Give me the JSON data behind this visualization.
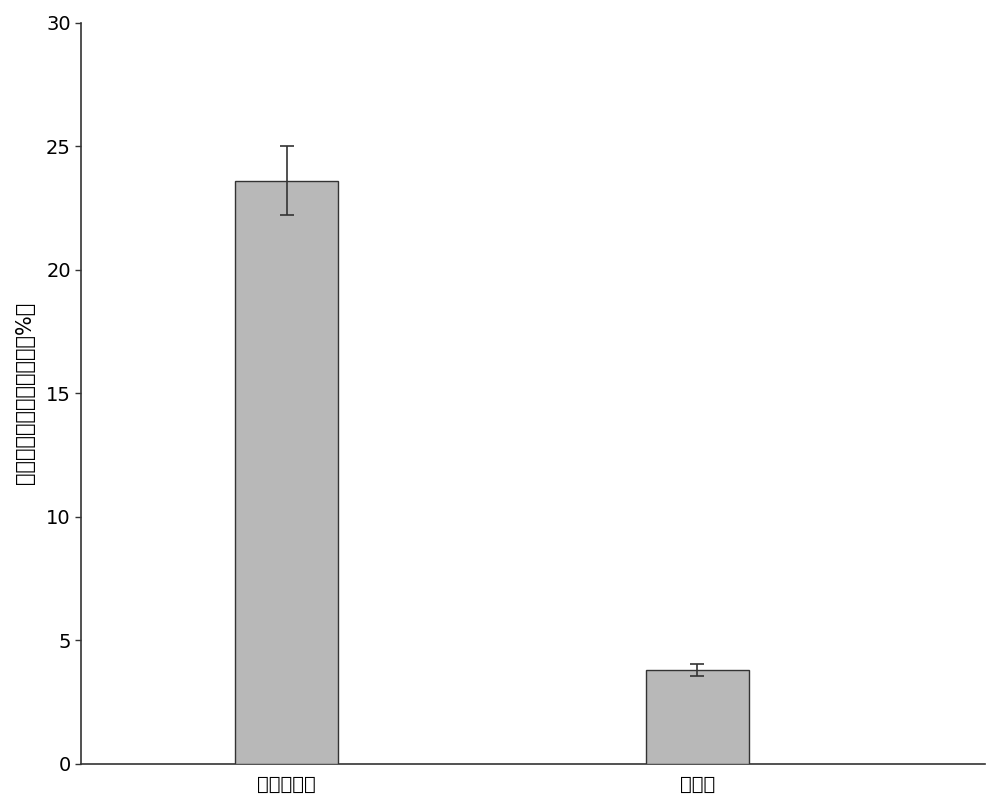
{
  "categories": [
    "添加乳酸菌",
    "纯培养"
  ],
  "values": [
    23.6,
    3.8
  ],
  "errors": [
    1.4,
    0.25
  ],
  "bar_color": "#b8b8b8",
  "bar_edgecolor": "#333333",
  "ylim": [
    0,
    30
  ],
  "yticks": [
    0,
    5,
    10,
    15,
    20,
    25,
    30
  ],
  "ylabel": "酵母菌酒精胁迫后存活率（%）",
  "ylabel_fontsize": 15,
  "tick_fontsize": 14,
  "xlabel_fontsize": 14,
  "bar_width": 0.25,
  "x_positions": [
    1,
    2
  ],
  "xlim": [
    0.5,
    2.7
  ],
  "background_color": "#ffffff"
}
